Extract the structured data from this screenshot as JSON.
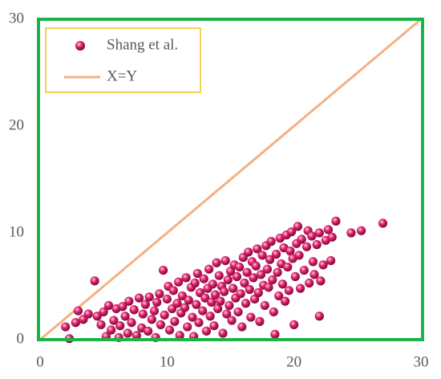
{
  "chart_data": {
    "type": "scatter",
    "xlim": [
      0,
      30
    ],
    "ylim": [
      0,
      30
    ],
    "xticks": [
      0,
      10,
      20,
      30
    ],
    "yticks": [
      0,
      10,
      20,
      30
    ],
    "frame_color": "#1db34a",
    "legend": "upper left",
    "legend_border_color": "#f0c419",
    "series": [
      {
        "name": "Shang et al.",
        "type": "scatter",
        "color": "#e0226e",
        "x": [
          2.0,
          2.3,
          2.8,
          3.0,
          3.4,
          3.8,
          4.3,
          4.5,
          4.8,
          5.0,
          5.2,
          5.4,
          5.6,
          5.8,
          6.0,
          6.2,
          6.3,
          6.5,
          6.7,
          6.9,
          7.0,
          7.2,
          7.4,
          7.6,
          7.8,
          8.0,
          8.1,
          8.3,
          8.5,
          8.6,
          8.8,
          9.0,
          9.1,
          9.2,
          9.4,
          9.5,
          9.7,
          9.8,
          10.0,
          10.1,
          10.2,
          10.4,
          10.5,
          10.6,
          10.8,
          10.9,
          11.0,
          11.1,
          11.2,
          11.4,
          11.5,
          11.6,
          11.7,
          11.9,
          12.0,
          12.1,
          12.2,
          12.3,
          12.4,
          12.5,
          12.6,
          12.8,
          12.9,
          13.0,
          13.1,
          13.2,
          13.3,
          13.4,
          13.5,
          13.6,
          13.7,
          13.8,
          13.9,
          14.0,
          14.1,
          14.2,
          14.3,
          14.4,
          14.5,
          14.6,
          14.7,
          14.8,
          14.9,
          15.0,
          15.1,
          15.2,
          15.3,
          15.4,
          15.5,
          15.6,
          15.7,
          15.8,
          15.9,
          16.0,
          16.1,
          16.2,
          16.3,
          16.4,
          16.5,
          16.6,
          16.7,
          16.8,
          16.9,
          17.0,
          17.1,
          17.2,
          17.3,
          17.4,
          17.5,
          17.6,
          17.7,
          17.8,
          17.9,
          18.0,
          18.1,
          18.2,
          18.3,
          18.4,
          18.5,
          18.6,
          18.7,
          18.8,
          18.9,
          19.0,
          19.1,
          19.2,
          19.3,
          19.4,
          19.5,
          19.6,
          19.7,
          19.8,
          19.9,
          20.0,
          20.1,
          20.2,
          20.3,
          20.4,
          20.5,
          20.6,
          20.8,
          21.0,
          21.1,
          21.2,
          21.4,
          21.5,
          21.6,
          21.8,
          22.0,
          22.0,
          22.1,
          22.3,
          22.5,
          22.7,
          22.9,
          23.0,
          23.3,
          24.5,
          25.3,
          27.0
        ],
        "y": [
          1.2,
          0.1,
          1.6,
          2.7,
          1.9,
          2.4,
          5.5,
          2.2,
          1.4,
          2.6,
          0.3,
          3.2,
          0.9,
          1.8,
          2.9,
          0.2,
          1.3,
          3.1,
          2.2,
          0.6,
          3.6,
          1.6,
          2.8,
          0.4,
          3.9,
          1.1,
          2.4,
          3.3,
          0.8,
          4.0,
          1.9,
          2.7,
          0.2,
          3.5,
          4.3,
          1.4,
          6.5,
          2.3,
          3.8,
          5.0,
          0.9,
          2.9,
          4.6,
          1.7,
          3.4,
          5.4,
          0.4,
          2.5,
          4.1,
          3.0,
          5.8,
          1.2,
          3.7,
          4.9,
          2.1,
          0.3,
          5.3,
          3.3,
          6.2,
          1.6,
          4.4,
          2.7,
          5.7,
          3.9,
          0.8,
          4.8,
          6.6,
          2.2,
          3.5,
          5.2,
          1.3,
          4.2,
          7.2,
          2.9,
          6.0,
          3.6,
          5.0,
          0.6,
          4.5,
          7.4,
          2.4,
          5.6,
          3.2,
          6.4,
          1.8,
          4.8,
          7.0,
          3.9,
          5.9,
          2.6,
          6.8,
          4.3,
          1.2,
          7.7,
          5.3,
          3.4,
          6.3,
          8.2,
          4.7,
          2.1,
          7.3,
          5.8,
          3.8,
          6.9,
          8.5,
          4.4,
          1.7,
          6.1,
          7.9,
          5.1,
          3.2,
          8.8,
          6.6,
          4.9,
          7.5,
          9.2,
          5.6,
          2.6,
          0.5,
          8.0,
          6.3,
          4.1,
          9.5,
          7.1,
          5.2,
          8.6,
          3.6,
          9.8,
          6.8,
          4.6,
          8.3,
          10.1,
          7.6,
          1.4,
          5.9,
          9.0,
          10.6,
          7.9,
          4.8,
          9.4,
          6.5,
          8.7,
          10.2,
          5.3,
          9.7,
          7.3,
          6.1,
          8.9,
          2.2,
          10.0,
          5.5,
          7.0,
          9.3,
          10.3,
          7.4,
          9.6,
          11.1,
          10.0,
          10.2,
          10.9
        ]
      },
      {
        "name": "X=Y",
        "type": "line",
        "color": "#f4b183",
        "x": [
          0,
          30
        ],
        "y": [
          0,
          30
        ]
      }
    ]
  }
}
